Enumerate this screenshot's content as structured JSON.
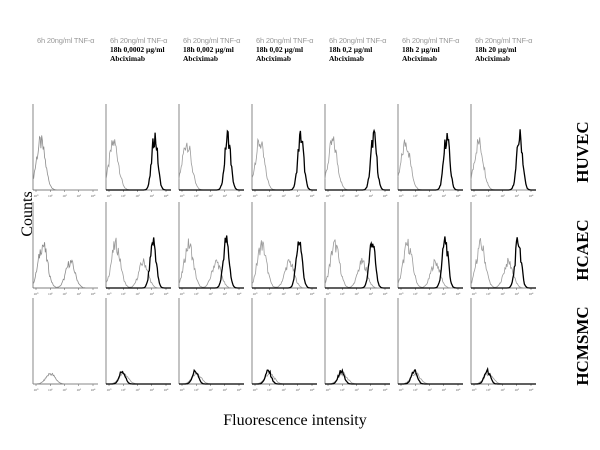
{
  "figure": {
    "ylabel": "Counts",
    "xlabel": "Fluorescence intensity"
  },
  "columns": [
    {
      "line1": "6h 20ng/ml TNF-α",
      "line2_time": "",
      "line2_dose": "",
      "line3": ""
    },
    {
      "line1": "6h 20ng/ml TNF-α",
      "line2_time": "18h",
      "line2_dose": "0,0002 µg/ml",
      "line3": "Abciximab"
    },
    {
      "line1": "6h 20ng/ml TNF-α",
      "line2_time": "18h",
      "line2_dose": "0,002 µg/ml",
      "line3": "Abciximab"
    },
    {
      "line1": "6h 20ng/ml TNF-α",
      "line2_time": "18h",
      "line2_dose": "0,02 µg/ml",
      "line3": "Abciximab"
    },
    {
      "line1": "6h 20ng/ml TNF-α",
      "line2_time": "18h",
      "line2_dose": "0,2 µg/ml",
      "line3": "Abciximab"
    },
    {
      "line1": "6h 20ng/ml TNF-α",
      "line2_time": "18h",
      "line2_dose": "2 µg/ml",
      "line3": "Abciximab"
    },
    {
      "line1": "6h 20ng/ml TNF-α",
      "line2_time": "18h",
      "line2_dose": "20 µg/ml",
      "line3": "Abciximab"
    }
  ],
  "rows": [
    {
      "label": "HUVEC"
    },
    {
      "label": "HCAEC"
    },
    {
      "label": "HCMSMC"
    }
  ],
  "chart_data": {
    "type": "line",
    "layout": "grid of histograms, 3 rows x 7 columns",
    "x_scale": "log",
    "xlim": [
      1,
      10000
    ],
    "x_ticks": [
      "10⁰",
      "10¹",
      "10²",
      "10³",
      "10⁴"
    ],
    "grid": false,
    "colors": {
      "control": "#9a9a9a",
      "treated": "#000000",
      "first_column_peak": "#8a8a8a"
    },
    "panels": [
      {
        "row": "HUVEC",
        "control": {
          "peaks": [
            [
              3,
              0.55
            ]
          ]
        },
        "treated": {
          "peaks": [
            [
              1000,
              0.62
            ]
          ]
        }
      },
      {
        "row": "HCAEC",
        "control": {
          "peaks": [
            [
              4,
              0.5
            ],
            [
              200,
              0.3
            ]
          ]
        },
        "treated": {
          "peaks": [
            [
              800,
              0.55
            ]
          ]
        }
      },
      {
        "row": "HCMSMC",
        "control": {
          "peaks": [
            [
              12,
              0.12
            ]
          ]
        },
        "treated": {
          "peaks": [
            [
              10,
              0.15
            ]
          ]
        }
      }
    ]
  }
}
